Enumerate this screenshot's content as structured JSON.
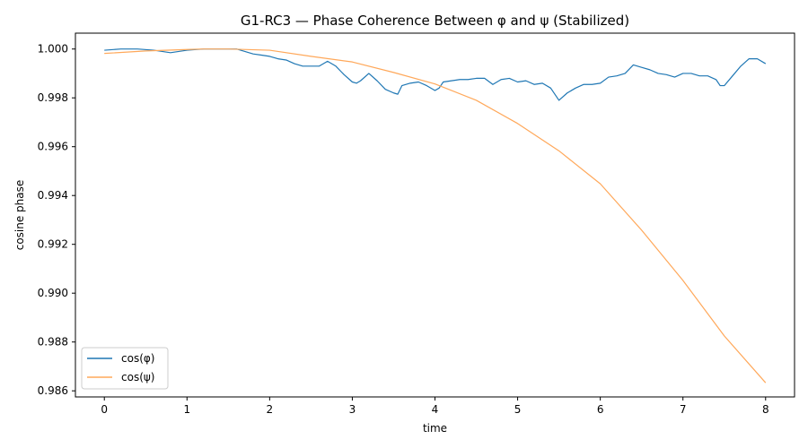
{
  "chart_data": {
    "type": "line",
    "title": "G1-RC3 — Phase Coherence Between φ and ψ (Stabilized)",
    "xlabel": "time",
    "ylabel": "cosine phase",
    "xlim": [
      -0.35,
      8.35
    ],
    "ylim": [
      0.98575,
      1.00065
    ],
    "xticks": [
      0,
      1,
      2,
      3,
      4,
      5,
      6,
      7,
      8
    ],
    "yticks": [
      0.986,
      0.988,
      0.99,
      0.992,
      0.994,
      0.996,
      0.998,
      1.0
    ],
    "ytick_labels": [
      "0.986",
      "0.988",
      "0.990",
      "0.992",
      "0.994",
      "0.996",
      "0.998",
      "1.000"
    ],
    "grid": false,
    "legend_position": "lower-left",
    "series": [
      {
        "name": "cos(φ)",
        "color": "#1f77b4",
        "x": [
          0,
          0.2,
          0.4,
          0.6,
          0.8,
          1.0,
          1.2,
          1.4,
          1.6,
          1.8,
          1.9,
          2.0,
          2.1,
          2.2,
          2.3,
          2.4,
          2.5,
          2.6,
          2.7,
          2.8,
          2.9,
          3.0,
          3.05,
          3.1,
          3.2,
          3.3,
          3.4,
          3.5,
          3.55,
          3.6,
          3.7,
          3.8,
          3.9,
          4.0,
          4.05,
          4.1,
          4.2,
          4.3,
          4.4,
          4.5,
          4.6,
          4.7,
          4.8,
          4.9,
          5.0,
          5.1,
          5.2,
          5.3,
          5.4,
          5.5,
          5.6,
          5.7,
          5.8,
          5.9,
          6.0,
          6.1,
          6.2,
          6.3,
          6.4,
          6.5,
          6.6,
          6.7,
          6.8,
          6.9,
          7.0,
          7.1,
          7.2,
          7.3,
          7.4,
          7.45,
          7.5,
          7.6,
          7.7,
          7.8,
          7.9,
          8.0
        ],
        "values": [
          0.99995,
          1.0,
          1.0,
          0.99995,
          0.99985,
          0.99995,
          1.0,
          1.0,
          1.0,
          0.9998,
          0.99975,
          0.9997,
          0.9996,
          0.99955,
          0.9994,
          0.9993,
          0.9993,
          0.9993,
          0.9995,
          0.9993,
          0.99895,
          0.99865,
          0.9986,
          0.9987,
          0.999,
          0.9987,
          0.99835,
          0.9982,
          0.99815,
          0.9985,
          0.9986,
          0.99865,
          0.9985,
          0.9983,
          0.9984,
          0.99865,
          0.9987,
          0.99875,
          0.99875,
          0.9988,
          0.9988,
          0.99855,
          0.99875,
          0.9988,
          0.99865,
          0.9987,
          0.99855,
          0.9986,
          0.9984,
          0.9979,
          0.9982,
          0.9984,
          0.99855,
          0.99855,
          0.9986,
          0.99885,
          0.9989,
          0.999,
          0.99935,
          0.99925,
          0.99915,
          0.999,
          0.99895,
          0.99885,
          0.999,
          0.999,
          0.9989,
          0.9989,
          0.99875,
          0.9985,
          0.9985,
          0.9989,
          0.9993,
          0.9996,
          0.9996,
          0.9994
        ]
      },
      {
        "name": "cos(ψ)",
        "color": "#ffa85a",
        "x": [
          0,
          0.5,
          1.0,
          1.2,
          1.5,
          2.0,
          2.5,
          3.0,
          3.5,
          4.0,
          4.5,
          5.0,
          5.5,
          6.0,
          6.5,
          7.0,
          7.5,
          8.0
        ],
        "values": [
          0.99982,
          0.99992,
          0.99998,
          1.0,
          1.0,
          0.99995,
          0.9997,
          0.99947,
          0.99904,
          0.99857,
          0.9979,
          0.99695,
          0.99583,
          0.99448,
          0.99258,
          0.99052,
          0.98825,
          0.98633
        ]
      }
    ]
  }
}
